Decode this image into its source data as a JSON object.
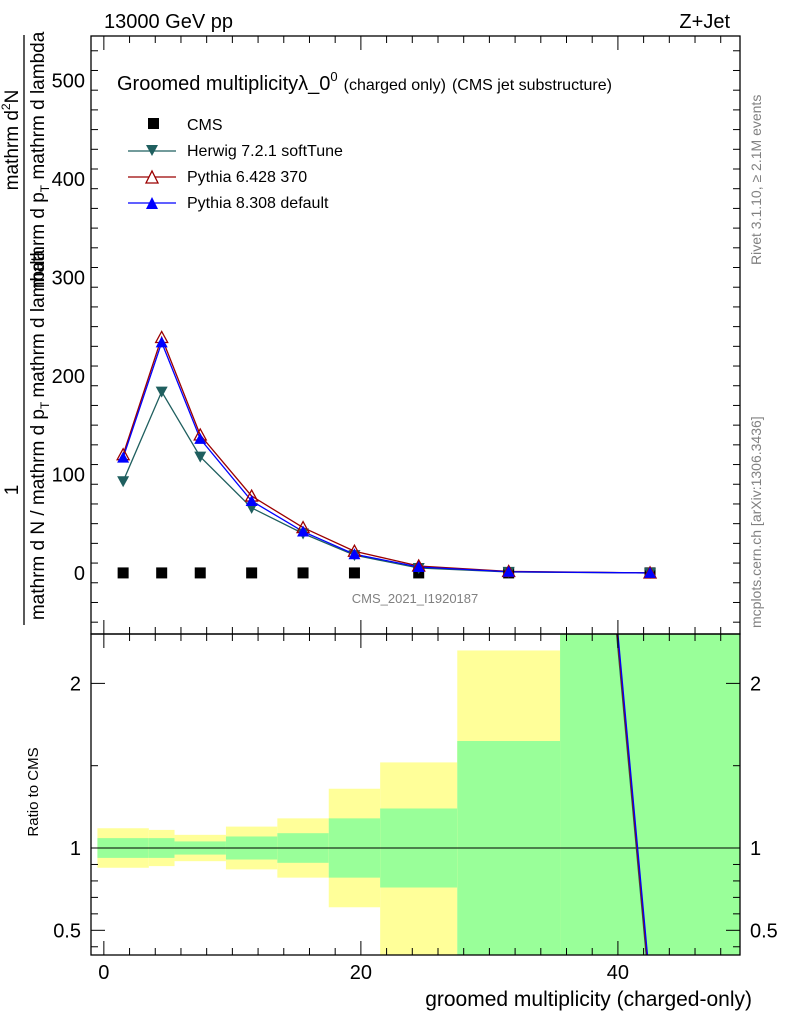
{
  "header": {
    "left": "13000 GeV pp",
    "right": "Z+Jet"
  },
  "side_texts": {
    "rivet": "Rivet 3.1.10, ≥ 2.1M events",
    "mcplots": "mcplots.cern.ch [arXiv:1306.3436]"
  },
  "chart_data": [
    {
      "type": "line",
      "title": "Groomed multiplicity",
      "title_sym": "λ_0",
      "title_sup": "0",
      "title_small": "(charged only)",
      "title_tail": "(CMS jet substructure)",
      "analysis_label": "CMS_2021_I1920187",
      "ylabel_num": "1",
      "ylabel_frac_num": "mathrm d",
      "ylabel_frac_num_sup": "2",
      "ylabel_frac_num_tail": "N",
      "ylabel_bottom": "mathrm d N / mathrm d p",
      "ylabel_bottom_sub": "T",
      "ylabel_bottom_tail": "mathrm d lambda",
      "ylabel_right_prefix": "mathrm d p",
      "ylabel_right_sub": "T",
      "ylabel_right_tail": " mathrm d lambda",
      "xlim": [
        -1,
        49.5
      ],
      "ylim": [
        -62,
        545
      ],
      "yticks": [
        0,
        100,
        200,
        300,
        400,
        500
      ],
      "legend_position": "top-left",
      "data_series": {
        "name": "CMS",
        "x": [
          1.5,
          4.5,
          7.5,
          11.5,
          15.5,
          19.5,
          24.5,
          31.5,
          42.5
        ],
        "y": [
          0,
          0,
          0,
          0,
          0,
          0,
          0,
          0,
          0
        ]
      },
      "series": [
        {
          "name": "Herwig 7.2.1 softTune",
          "color": "#1f5f5f",
          "marker": "triangle-down-filled",
          "x": [
            1.5,
            4.5,
            7.5,
            11.5,
            15.5,
            19.5,
            24.5,
            31.5,
            42.5
          ],
          "y": [
            93,
            184,
            118,
            66,
            40,
            18,
            5,
            1,
            0
          ]
        },
        {
          "name": "Pythia 6.428 370",
          "color": "#9b0000",
          "marker": "triangle-up-open",
          "x": [
            1.5,
            4.5,
            7.5,
            11.5,
            15.5,
            19.5,
            24.5,
            31.5,
            42.5
          ],
          "y": [
            120,
            239,
            140,
            78,
            46,
            22,
            7,
            1.5,
            0
          ]
        },
        {
          "name": "Pythia 8.308 default",
          "color": "#0000ff",
          "marker": "triangle-up-filled",
          "x": [
            1.5,
            4.5,
            7.5,
            11.5,
            15.5,
            19.5,
            24.5,
            31.5,
            42.5
          ],
          "y": [
            117,
            234,
            136,
            73,
            42,
            19,
            6,
            1.2,
            0
          ]
        }
      ]
    },
    {
      "type": "area",
      "ylabel": "Ratio to CMS",
      "xlabel": "groomed multiplicity (charged-only)",
      "xlim": [
        -1,
        49.5
      ],
      "ylim": [
        0.35,
        2.3
      ],
      "xticks": [
        0,
        20,
        40
      ],
      "yticks": [
        0.5,
        1,
        2
      ],
      "ytick_labels": [
        "0.5",
        "1",
        "2"
      ],
      "bands": [
        {
          "x0": -0.5,
          "x1": 3.5,
          "green": [
            0.94,
            1.06
          ],
          "yellow": [
            0.88,
            1.12
          ]
        },
        {
          "x0": 3.5,
          "x1": 5.5,
          "green": [
            0.94,
            1.06
          ],
          "yellow": [
            0.89,
            1.11
          ]
        },
        {
          "x0": 5.5,
          "x1": 9.5,
          "green": [
            0.96,
            1.04
          ],
          "yellow": [
            0.92,
            1.08
          ]
        },
        {
          "x0": 9.5,
          "x1": 13.5,
          "green": [
            0.93,
            1.07
          ],
          "yellow": [
            0.87,
            1.13
          ]
        },
        {
          "x0": 13.5,
          "x1": 17.5,
          "green": [
            0.91,
            1.09
          ],
          "yellow": [
            0.82,
            1.18
          ]
        },
        {
          "x0": 17.5,
          "x1": 21.5,
          "green": [
            0.82,
            1.18
          ],
          "yellow": [
            0.64,
            1.36
          ]
        },
        {
          "x0": 21.5,
          "x1": 27.5,
          "green": [
            0.76,
            1.24
          ],
          "yellow": [
            0.35,
            1.52
          ]
        },
        {
          "x0": 27.5,
          "x1": 35.5,
          "green": [
            0.35,
            1.65
          ],
          "yellow": [
            0.35,
            2.2
          ]
        },
        {
          "x0": 35.5,
          "x1": 49.5,
          "green": [
            0.35,
            2.3
          ],
          "yellow": [
            0.35,
            2.3
          ]
        }
      ],
      "ratio_lines": [
        {
          "name": "Herwig 7.2.1 softTune",
          "color": "#1f5f5f",
          "x": [
            39.9,
            42.2
          ],
          "y": [
            2.3,
            0.35
          ]
        },
        {
          "name": "Pythia 6.428 370",
          "color": "#9b0000",
          "x": [
            39.95,
            42.25
          ],
          "y": [
            2.3,
            0.35
          ]
        },
        {
          "name": "Pythia 8.308 default",
          "color": "#0000ff",
          "x": [
            40.0,
            42.3
          ],
          "y": [
            2.3,
            0.35
          ]
        }
      ]
    }
  ]
}
